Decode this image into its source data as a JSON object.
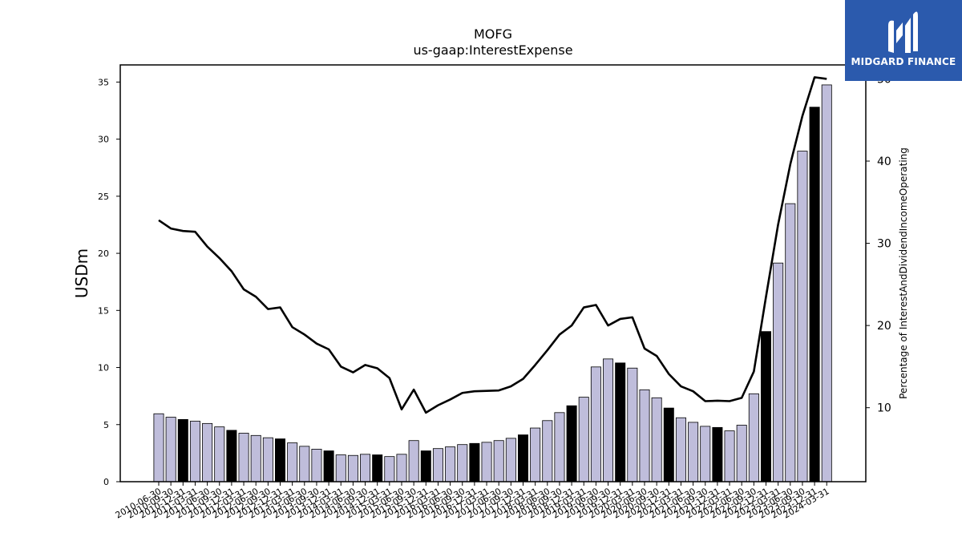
{
  "brand": {
    "name": "MIDGARD FINANCE",
    "bg_color": "#2b5aad"
  },
  "colors": {
    "bar": "#bfbddb",
    "bar_highlight": "#000000",
    "line": "#000000"
  },
  "chart_data": {
    "type": "bar",
    "title": "MOFG",
    "subtitle": "us-gaap:InterestExpense",
    "ylabel": "USDm",
    "y2label": "Percentage of InterestAndDividendIncomeOperating",
    "ylim": [
      0,
      36.5
    ],
    "y2lim": [
      1,
      51.7
    ],
    "yticks": [
      0,
      5,
      10,
      15,
      20,
      25,
      30,
      35
    ],
    "y2ticks": [
      10,
      20,
      30,
      40,
      50
    ],
    "categories": [
      "2010-06-30",
      "2010-09-30",
      "2010-12-31",
      "2011-03-31",
      "2011-06-30",
      "2011-09-30",
      "2011-12-31",
      "2012-03-31",
      "2012-06-30",
      "2012-09-30",
      "2012-12-31",
      "2013-03-31",
      "2013-06-30",
      "2013-09-30",
      "2013-12-31",
      "2014-03-31",
      "2014-06-30",
      "2014-09-30",
      "2014-12-31",
      "2015-03-31",
      "2015-06-30",
      "2015-09-30",
      "2015-12-31",
      "2016-03-31",
      "2016-06-30",
      "2016-09-30",
      "2016-12-31",
      "2017-03-31",
      "2017-06-30",
      "2017-09-30",
      "2017-12-31",
      "2018-03-31",
      "2018-06-30",
      "2018-09-30",
      "2018-12-31",
      "2019-03-31",
      "2019-06-30",
      "2019-09-30",
      "2019-12-31",
      "2020-03-31",
      "2020-06-30",
      "2020-09-30",
      "2020-12-31",
      "2021-03-31",
      "2021-06-30",
      "2021-09-30",
      "2021-12-31",
      "2022-03-31",
      "2022-06-30",
      "2022-09-30",
      "2022-12-31",
      "2023-03-31",
      "2023-06-30",
      "2023-09-30",
      "2023-12-31",
      "2024-03-31"
    ],
    "series": [
      {
        "type": "bar",
        "axis": "left",
        "values": [
          5.95,
          5.65,
          5.45,
          5.3,
          5.1,
          4.8,
          4.5,
          4.25,
          4.05,
          3.85,
          3.75,
          3.4,
          3.1,
          2.85,
          2.7,
          2.35,
          2.3,
          2.4,
          2.35,
          2.2,
          2.4,
          3.6,
          2.7,
          2.9,
          3.05,
          3.25,
          3.35,
          3.45,
          3.6,
          3.8,
          4.1,
          4.7,
          5.35,
          6.05,
          6.65,
          7.4,
          10.05,
          10.75,
          10.4,
          9.95,
          8.05,
          7.35,
          6.45,
          5.6,
          5.2,
          4.85,
          4.75,
          4.45,
          4.95,
          7.7,
          13.15,
          19.15,
          24.35,
          28.95,
          32.8,
          34.75
        ],
        "highlight": [
          2,
          6,
          10,
          14,
          18,
          22,
          26,
          30,
          34,
          38,
          42,
          46,
          50,
          54
        ]
      },
      {
        "type": "line",
        "axis": "right",
        "values": [
          32.8,
          31.8,
          31.5,
          31.4,
          29.6,
          28.2,
          26.6,
          24.4,
          23.5,
          22.0,
          22.2,
          19.8,
          18.9,
          17.8,
          17.1,
          15.0,
          14.3,
          15.2,
          14.8,
          13.6,
          9.8,
          12.2,
          9.4,
          10.3,
          11.0,
          11.8,
          12.0,
          12.05,
          12.1,
          12.6,
          13.5,
          15.2,
          17.0,
          18.9,
          20.0,
          22.2,
          22.5,
          20.0,
          20.8,
          21.0,
          17.2,
          16.3,
          14.1,
          12.6,
          12.0,
          10.8,
          10.85,
          10.8,
          11.2,
          14.4,
          23.5,
          32.3,
          39.6,
          45.5,
          50.2,
          50.0
        ]
      }
    ]
  }
}
